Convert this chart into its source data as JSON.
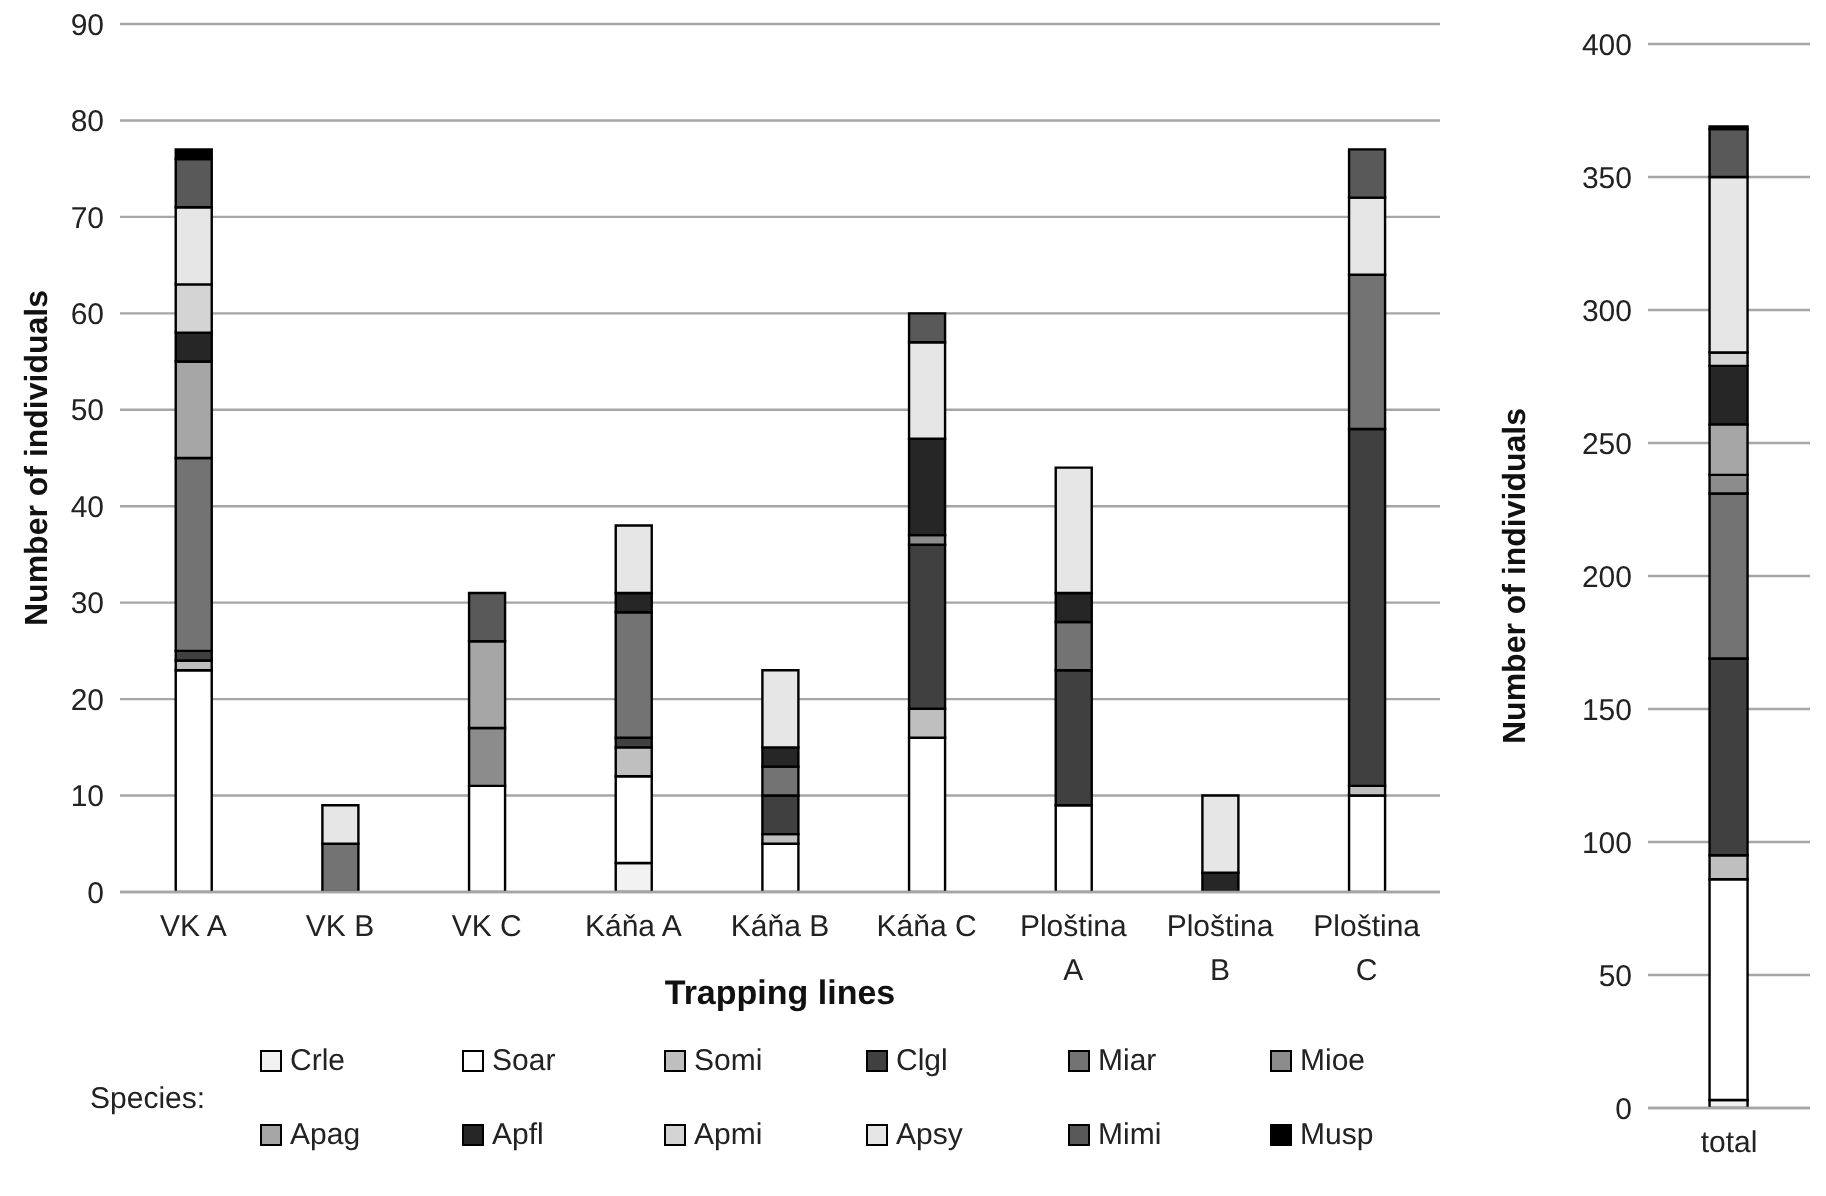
{
  "chart_data": [
    {
      "type": "bar",
      "stacked": true,
      "xlabel": "Trapping lines",
      "ylabel": "Number of individuals",
      "legend_title": "Species:",
      "legend": "bottom",
      "grid": "y",
      "categories": [
        "VK A",
        "VK B",
        "VK C",
        "Káňa A",
        "Káňa B",
        "Káňa C",
        "Ploština A",
        "Ploština B",
        "Ploština C"
      ],
      "ylim": [
        0,
        90
      ],
      "yticks": [
        0,
        10,
        20,
        30,
        40,
        50,
        60,
        70,
        80,
        90
      ],
      "series": [
        {
          "name": "Crle",
          "color": "#f2f2f2",
          "values": [
            0,
            0,
            0,
            3,
            0,
            0,
            0,
            0,
            0
          ]
        },
        {
          "name": "Soar",
          "color": "#ffffff",
          "values": [
            23,
            0,
            11,
            9,
            5,
            16,
            9,
            0,
            10
          ]
        },
        {
          "name": "Somi",
          "color": "#bfbfbf",
          "values": [
            1,
            0,
            0,
            3,
            1,
            3,
            0,
            0,
            1
          ]
        },
        {
          "name": "Clgl",
          "color": "#404040",
          "values": [
            1,
            0,
            0,
            1,
            4,
            17,
            14,
            0,
            37
          ]
        },
        {
          "name": "Miar",
          "color": "#737373",
          "values": [
            20,
            5,
            0,
            13,
            3,
            0,
            5,
            0,
            16
          ]
        },
        {
          "name": "Mioe",
          "color": "#8c8c8c",
          "values": [
            0,
            0,
            6,
            0,
            0,
            1,
            0,
            0,
            0
          ]
        },
        {
          "name": "Apag",
          "color": "#a6a6a6",
          "values": [
            10,
            0,
            9,
            0,
            0,
            0,
            0,
            0,
            0
          ]
        },
        {
          "name": "Apfl",
          "color": "#262626",
          "values": [
            3,
            0,
            0,
            2,
            2,
            10,
            3,
            2,
            0
          ]
        },
        {
          "name": "Apmi",
          "color": "#d4d4d4",
          "values": [
            5,
            0,
            0,
            0,
            0,
            0,
            0,
            0,
            0
          ]
        },
        {
          "name": "Apsy",
          "color": "#e6e6e6",
          "values": [
            8,
            4,
            0,
            7,
            8,
            10,
            13,
            8,
            8
          ]
        },
        {
          "name": "Mimi",
          "color": "#595959",
          "values": [
            5,
            0,
            5,
            0,
            0,
            3,
            0,
            0,
            5
          ]
        },
        {
          "name": "Musp",
          "color": "#000000",
          "values": [
            1,
            0,
            0,
            0,
            0,
            0,
            0,
            0,
            0
          ]
        }
      ]
    },
    {
      "type": "bar",
      "stacked": true,
      "ylabel": "Number of individuals",
      "grid": "y",
      "categories": [
        "total"
      ],
      "ylim": [
        0,
        400
      ],
      "yticks": [
        0,
        50,
        100,
        150,
        200,
        250,
        300,
        350,
        400
      ],
      "series": [
        {
          "color": "#f2f2f2",
          "values": [
            3
          ]
        },
        {
          "color": "#ffffff",
          "values": [
            83
          ]
        },
        {
          "color": "#bfbfbf",
          "values": [
            9
          ]
        },
        {
          "color": "#404040",
          "values": [
            74
          ]
        },
        {
          "color": "#737373",
          "values": [
            62
          ]
        },
        {
          "color": "#8c8c8c",
          "values": [
            7
          ]
        },
        {
          "color": "#a6a6a6",
          "values": [
            19
          ]
        },
        {
          "color": "#262626",
          "values": [
            22
          ]
        },
        {
          "color": "#d4d4d4",
          "values": [
            5
          ]
        },
        {
          "color": "#e6e6e6",
          "values": [
            66
          ]
        },
        {
          "color": "#595959",
          "values": [
            18
          ]
        },
        {
          "color": "#000000",
          "values": [
            1
          ]
        }
      ]
    }
  ]
}
